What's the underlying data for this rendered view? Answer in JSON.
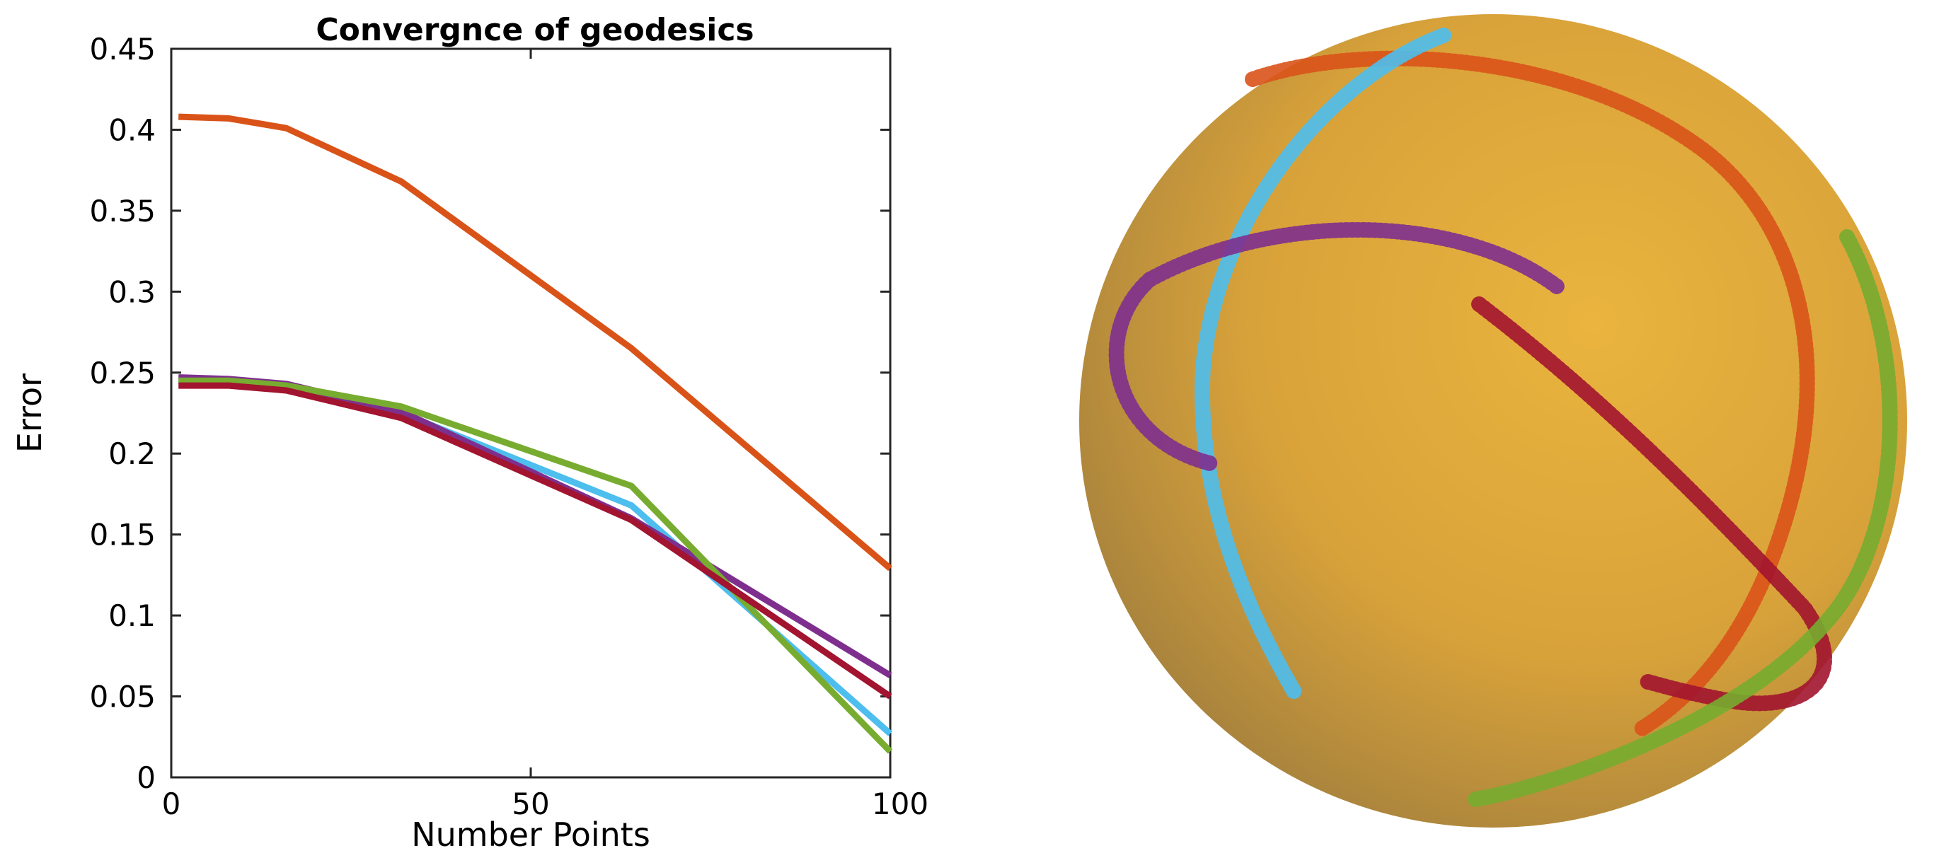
{
  "chart_data": {
    "type": "line",
    "title": "Convergnce of geodesics",
    "xlabel": "Number Points",
    "ylabel": "Error",
    "xlim": [
      0,
      100
    ],
    "ylim": [
      0,
      0.45
    ],
    "xticks": [
      0,
      50,
      100
    ],
    "xtick_labels": [
      "0",
      "50",
      "100"
    ],
    "yticks": [
      0,
      0.05,
      0.1,
      0.15,
      0.2,
      0.25,
      0.3,
      0.35,
      0.4,
      0.45
    ],
    "ytick_labels": [
      "0",
      "0.05",
      "0.1",
      "0.15",
      "0.2",
      "0.25",
      "0.3",
      "0.35",
      "0.4",
      "0.45"
    ],
    "grid": false,
    "legend": "none",
    "series": [
      {
        "color": "#D95319",
        "x": [
          1,
          8,
          16,
          32,
          64,
          100
        ],
        "y": [
          0.408,
          0.407,
          0.401,
          0.368,
          0.265,
          0.129
        ]
      },
      {
        "color": "#4DBEEE",
        "x": [
          1,
          8,
          16,
          32,
          64,
          100
        ],
        "y": [
          0.245,
          0.244,
          0.241,
          0.225,
          0.168,
          0.027
        ]
      },
      {
        "color": "#7E2F8E",
        "x": [
          1,
          8,
          16,
          32,
          64,
          100
        ],
        "y": [
          0.247,
          0.246,
          0.243,
          0.226,
          0.16,
          0.063
        ]
      },
      {
        "color": "#77AC30",
        "x": [
          1,
          8,
          16,
          32,
          64,
          100
        ],
        "y": [
          0.245,
          0.245,
          0.242,
          0.229,
          0.18,
          0.016
        ]
      },
      {
        "color": "#A2142F",
        "x": [
          1,
          8,
          16,
          32,
          64,
          100
        ],
        "y": [
          0.242,
          0.242,
          0.239,
          0.222,
          0.159,
          0.05
        ]
      }
    ]
  },
  "sphere": {
    "surface_color": "#E0A83A",
    "curve_colors": [
      "#D95319",
      "#4DBEEE",
      "#7E2F8E",
      "#77AC30",
      "#A2142F",
      "#EDB120"
    ]
  }
}
